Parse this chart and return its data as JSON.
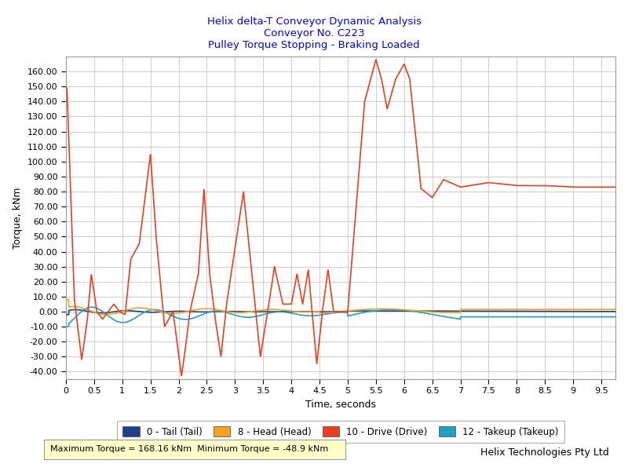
{
  "title_line1": "Helix delta-T Conveyor Dynamic Analysis",
  "title_line2": "Conveyor No. C223",
  "title_line3": "Pulley Torque Stopping - Braking Loaded",
  "title_color": "#0000FF",
  "xlabel": "Time, seconds",
  "ylabel": "Torque, kNm",
  "xlim": [
    0,
    9.75
  ],
  "ylim": [
    -45,
    170
  ],
  "yticks": [
    -40,
    -30,
    -20,
    -10,
    0,
    10,
    20,
    30,
    40,
    50,
    60,
    70,
    80,
    90,
    100,
    110,
    120,
    130,
    140,
    150,
    160
  ],
  "xticks": [
    0,
    0.5,
    1,
    1.5,
    2,
    2.5,
    3,
    3.5,
    4,
    4.5,
    5,
    5.5,
    6,
    6.5,
    7,
    7.5,
    8,
    8.5,
    9,
    9.5
  ],
  "legend_labels": [
    "0 - Tail (Tail)",
    "8 - Head (Head)",
    "10 - Drive (Drive)",
    "12 - Takeup (Takeup)"
  ],
  "legend_colors": [
    "#1F3F8F",
    "#F4A020",
    "#E84020",
    "#20A0C0"
  ],
  "stats_text": "Maximum Torque = 168.16 kNm  Minimum Torque = -48.9 kNm",
  "watermark": "Helix Technologies Pty Ltd",
  "background_color": "#FFFFFF",
  "plot_bg_color": "#FFFFFF",
  "grid_color": "#BBBBBB",
  "drive_key_points_t": [
    0,
    0.02,
    0.15,
    0.28,
    0.38,
    0.45,
    0.55,
    0.65,
    0.75,
    0.85,
    0.95,
    1.05,
    1.15,
    1.3,
    1.5,
    1.6,
    1.75,
    1.9,
    2.05,
    2.1,
    2.2,
    2.35,
    2.45,
    2.55,
    2.65,
    2.75,
    2.85,
    2.95,
    3.05,
    3.15,
    3.3,
    3.45,
    3.6,
    3.7,
    3.85,
    4.0,
    4.1,
    4.2,
    4.3,
    4.45,
    4.55,
    4.65,
    4.75,
    5.0,
    5.3,
    5.5,
    5.6,
    5.7,
    5.85,
    6.0,
    6.1,
    6.3,
    6.5,
    6.7,
    7.0,
    7.5,
    8.0,
    8.5,
    9.0,
    9.5,
    9.75
  ],
  "drive_key_points_y": [
    150,
    148,
    8,
    -32,
    -5,
    25,
    0,
    -5,
    0,
    5,
    0,
    -2,
    35,
    45,
    105,
    50,
    -10,
    0,
    -43,
    -30,
    0,
    25,
    82,
    25,
    -5,
    -30,
    5,
    30,
    55,
    80,
    25,
    -30,
    5,
    30,
    5,
    5,
    25,
    5,
    28,
    -35,
    0,
    28,
    0,
    0,
    140,
    168,
    155,
    135,
    155,
    165,
    155,
    82,
    76,
    88,
    83,
    86,
    84,
    84,
    83,
    83,
    83
  ]
}
